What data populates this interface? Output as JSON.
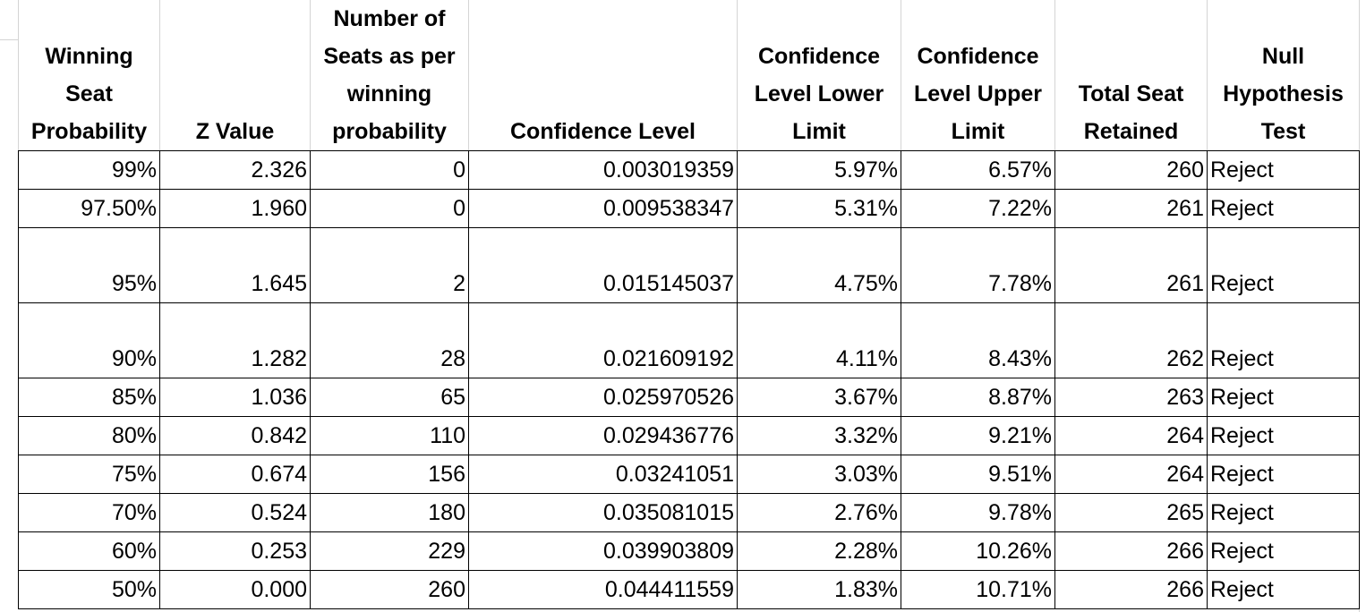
{
  "table": {
    "header": [
      "Winning\nSeat\nProbability",
      "Z Value",
      "Number of\nSeats as per\nwinning\nprobability",
      "Confidence Level",
      "Confidence\nLevel Lower\nLimit",
      "Confidence\nLevel Upper\nLimit",
      "Total Seat\nRetained",
      "Null\nHypothesis\nTest"
    ],
    "rows": [
      [
        "99%",
        "2.326",
        "0",
        "0.003019359",
        "5.97%",
        "6.57%",
        "260",
        "Reject"
      ],
      [
        "97.50%",
        "1.960",
        "0",
        "0.009538347",
        "5.31%",
        "7.22%",
        "261",
        "Reject"
      ],
      [
        "95%",
        "1.645",
        "2",
        "0.015145037",
        "4.75%",
        "7.78%",
        "261",
        "Reject"
      ],
      [
        "90%",
        "1.282",
        "28",
        "0.021609192",
        "4.11%",
        "8.43%",
        "262",
        "Reject"
      ],
      [
        "85%",
        "1.036",
        "65",
        "0.025970526",
        "3.67%",
        "8.87%",
        "263",
        "Reject"
      ],
      [
        "80%",
        "0.842",
        "110",
        "0.029436776",
        "3.32%",
        "9.21%",
        "264",
        "Reject"
      ],
      [
        "75%",
        "0.674",
        "156",
        "0.03241051",
        "3.03%",
        "9.51%",
        "264",
        "Reject"
      ],
      [
        "70%",
        "0.524",
        "180",
        "0.035081015",
        "2.76%",
        "9.78%",
        "265",
        "Reject"
      ],
      [
        "60%",
        "0.253",
        "229",
        "0.039903809",
        "2.28%",
        "10.26%",
        "266",
        "Reject"
      ],
      [
        "50%",
        "0.000",
        "260",
        "0.044411559",
        "1.83%",
        "10.71%",
        "266",
        "Reject"
      ]
    ]
  }
}
